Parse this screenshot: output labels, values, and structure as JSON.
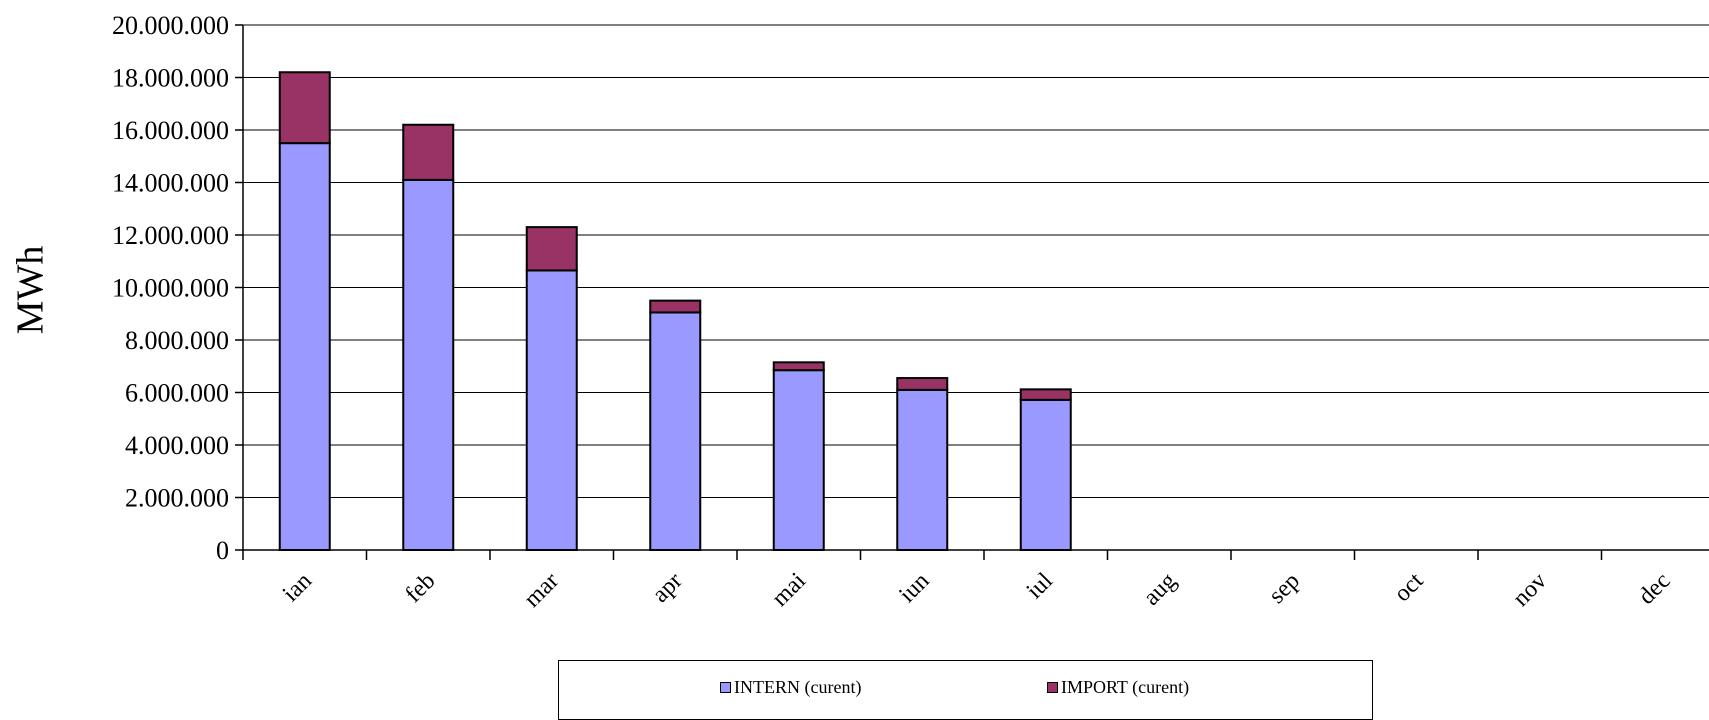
{
  "chart_data": {
    "type": "bar",
    "stacked": true,
    "categories": [
      "ian",
      "feb",
      "mar",
      "apr",
      "mai",
      "iun",
      "iul",
      "aug",
      "sep",
      "oct",
      "nov",
      "dec"
    ],
    "series": [
      {
        "name": "INTERN (curent)",
        "color": "#9999ff",
        "values": [
          15500000,
          14100000,
          10650000,
          9050000,
          6850000,
          6100000,
          5720000,
          null,
          null,
          null,
          null,
          null
        ]
      },
      {
        "name": "IMPORT (curent)",
        "color": "#993366",
        "values": [
          2700000,
          2100000,
          1650000,
          450000,
          300000,
          450000,
          400000,
          null,
          null,
          null,
          null,
          null
        ]
      }
    ],
    "ylabel": "MWh",
    "ylim": [
      0,
      20000000
    ],
    "yticks": [
      0,
      2000000,
      4000000,
      6000000,
      8000000,
      10000000,
      12000000,
      14000000,
      16000000,
      18000000,
      20000000
    ],
    "ytick_labels": [
      "0",
      "2.000.000",
      "4.000.000",
      "6.000.000",
      "8.000.000",
      "10.000.000",
      "12.000.000",
      "14.000.000",
      "16.000.000",
      "18.000.000",
      "20.000.000"
    ],
    "grid": true,
    "legend": "bottom"
  }
}
